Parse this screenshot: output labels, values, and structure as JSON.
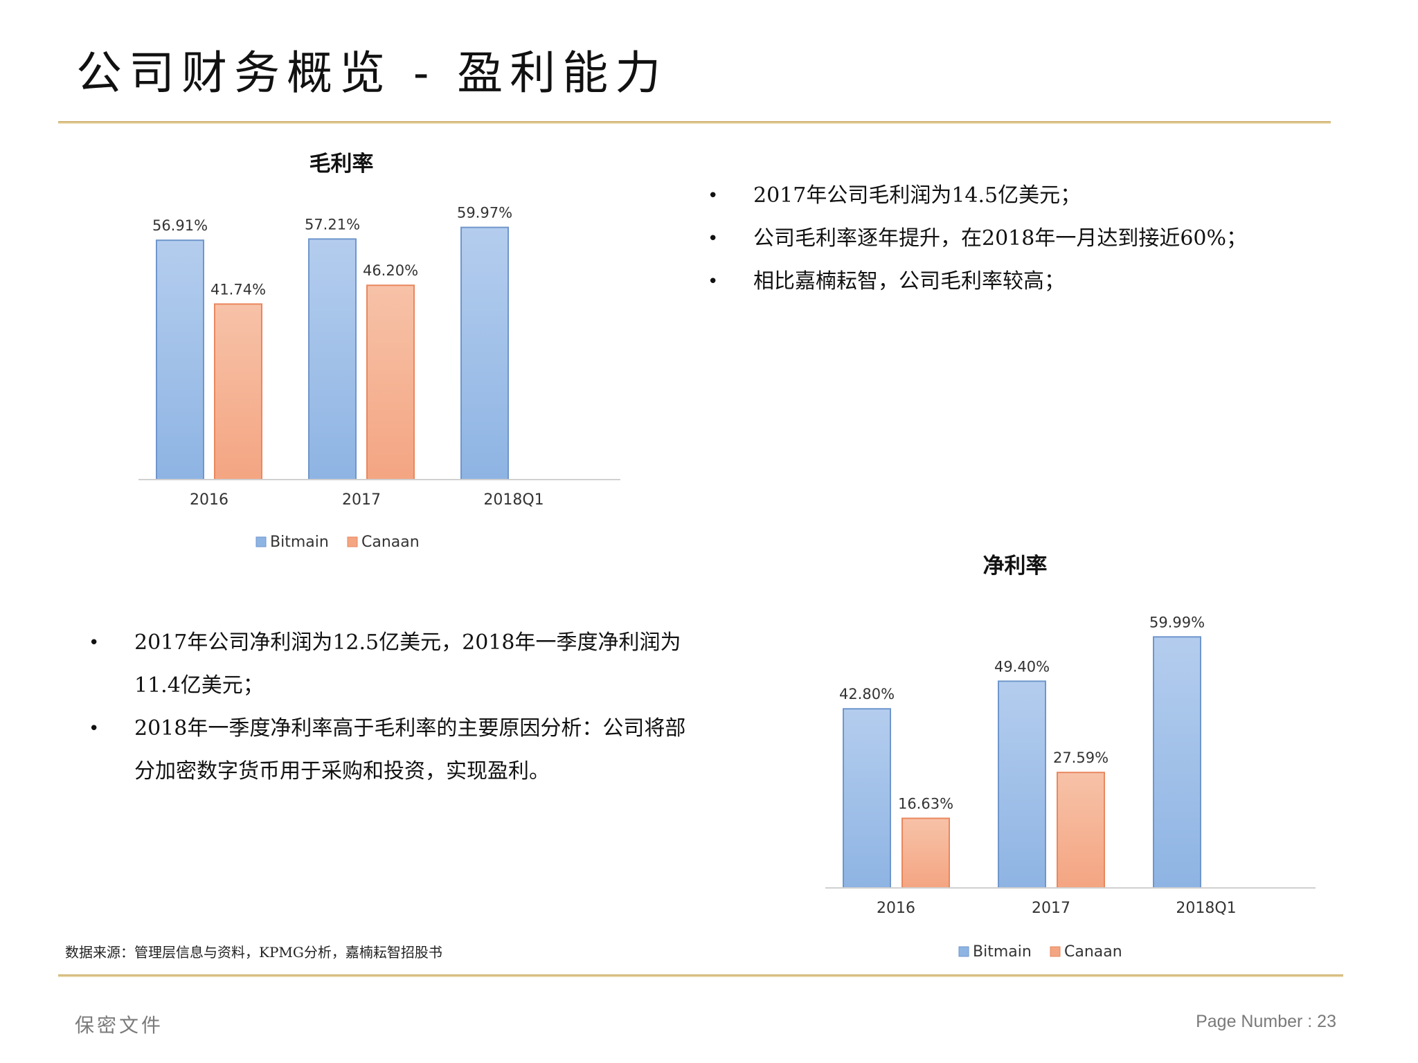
{
  "page": {
    "title": "公司财务概览 - 盈利能力",
    "source_note": "数据来源：管理层信息与资料，KPMG分析，嘉楠耘智招股书",
    "footer_left": "保密文件",
    "footer_right": "Page Number : 23"
  },
  "colors": {
    "bitmain": "#8eb4e3",
    "canaan": "#f4a582",
    "rule": "#c9a961"
  },
  "bullets_top": [
    {
      "text": "2017年公司毛利润为14.5亿美元；"
    },
    {
      "text": "公司毛利率逐年提升，在2018年一月达到接近60%；"
    },
    {
      "text": "相比嘉楠耘智，公司毛利率较高；"
    }
  ],
  "bullets_bottom": [
    {
      "text": "2017年公司净利润为12.5亿美元，2018年一季度净利润为11.4亿美元；"
    },
    {
      "text": "2018年一季度净利率高于毛利率的主要原因分析：公司将部分加密数字货币用于采购和投资，实现盈利。"
    }
  ],
  "chart_data": [
    {
      "type": "bar",
      "title": "毛利率",
      "categories": [
        "2016",
        "2017",
        "2018Q1"
      ],
      "series": [
        {
          "name": "Bitmain",
          "values": [
            56.91,
            57.21,
            59.97
          ],
          "labels": [
            "56.91%",
            "57.21%",
            "59.97%"
          ]
        },
        {
          "name": "Canaan",
          "values": [
            41.74,
            46.2,
            null
          ],
          "labels": [
            "41.74%",
            "46.20%",
            ""
          ]
        }
      ],
      "ylim": [
        0,
        65
      ],
      "grid": false,
      "legend": "bottom"
    },
    {
      "type": "bar",
      "title": "净利率",
      "categories": [
        "2016",
        "2017",
        "2018Q1"
      ],
      "series": [
        {
          "name": "Bitmain",
          "values": [
            42.8,
            49.4,
            59.99
          ],
          "labels": [
            "42.80%",
            "49.40%",
            "59.99%"
          ]
        },
        {
          "name": "Canaan",
          "values": [
            16.63,
            27.59,
            null
          ],
          "labels": [
            "16.63%",
            "27.59%",
            ""
          ]
        }
      ],
      "ylim": [
        0,
        65
      ],
      "grid": false,
      "legend": "bottom"
    }
  ]
}
